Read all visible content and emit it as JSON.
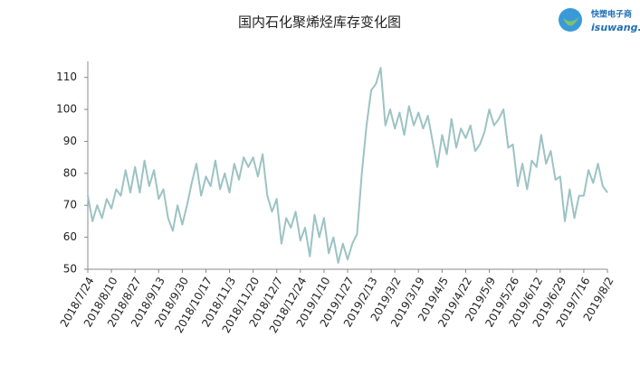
{
  "logo": {
    "name": "快塑电子商",
    "domain": "isuwang.co"
  },
  "chart_data": {
    "type": "line",
    "title": "国内石化聚烯烃库存变化图",
    "categories": [
      "2018/7/24",
      null,
      null,
      null,
      null,
      "2018/8/10",
      null,
      null,
      null,
      null,
      "2018/8/27",
      null,
      null,
      null,
      null,
      "2018/9/13",
      null,
      null,
      null,
      null,
      "2018/9/30",
      null,
      null,
      null,
      null,
      "2018/10/17",
      null,
      null,
      null,
      null,
      "2018/11/3",
      null,
      null,
      null,
      null,
      "2018/11/20",
      null,
      null,
      null,
      null,
      "2018/12/7",
      null,
      null,
      null,
      null,
      "2018/12/24",
      null,
      null,
      null,
      null,
      "2019/1/10",
      null,
      null,
      null,
      null,
      "2019/1/27",
      null,
      null,
      null,
      null,
      "2019/2/13",
      null,
      null,
      null,
      null,
      "2019/3/2",
      null,
      null,
      null,
      null,
      "2019/3/19",
      null,
      null,
      null,
      null,
      "2019/4/5",
      null,
      null,
      null,
      null,
      "2019/4/22",
      null,
      null,
      null,
      null,
      "2019/5/9",
      null,
      null,
      null,
      null,
      "2019/5/26",
      null,
      null,
      null,
      null,
      "2019/6/12",
      null,
      null,
      null,
      null,
      "2019/6/29",
      null,
      null,
      null,
      null,
      "2019/7/16",
      null,
      null,
      null,
      null,
      "2019/8/2"
    ],
    "values": [
      73,
      65,
      70,
      66,
      72,
      69,
      75,
      73,
      81,
      74,
      82,
      74,
      84,
      76,
      81,
      72,
      75,
      66,
      62,
      70,
      64,
      70,
      77,
      83,
      73,
      79,
      76,
      84,
      75,
      80,
      74,
      83,
      78,
      85,
      82,
      85,
      79,
      86,
      73,
      68,
      72,
      58,
      66,
      63,
      68,
      59,
      63,
      54,
      67,
      60,
      66,
      55,
      60,
      52,
      58,
      53,
      58,
      61,
      80,
      95,
      106,
      108,
      113,
      95,
      100,
      94,
      99,
      92,
      101,
      95,
      99,
      94,
      98,
      90,
      82,
      92,
      86,
      97,
      88,
      94,
      91,
      95,
      87,
      89,
      93,
      100,
      95,
      97,
      100,
      88,
      89,
      76,
      83,
      75,
      84,
      82,
      92,
      83,
      87,
      78,
      79,
      65,
      75,
      66,
      73,
      73,
      81,
      77,
      83,
      76,
      74
    ],
    "color": "#9cc3c4",
    "ylim": [
      50,
      115
    ],
    "yticks": [
      50,
      60,
      70,
      80,
      90,
      100,
      110
    ],
    "grid": false
  }
}
